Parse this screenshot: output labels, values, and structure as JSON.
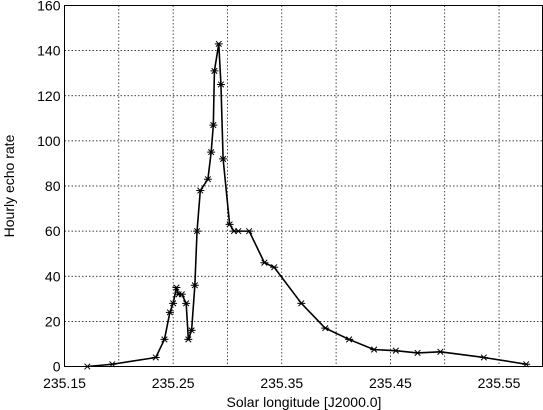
{
  "chart_data": {
    "type": "line",
    "xlabel": "Solar longitude [J2000.0]",
    "ylabel": "Hourly echo rate",
    "xlim": [
      235.15,
      235.59
    ],
    "ylim": [
      0,
      160
    ],
    "x_ticks": [
      "235.15",
      "235.25",
      "235.35",
      "235.45",
      "235.55"
    ],
    "x_gridlines": [
      235.15,
      235.2,
      235.25,
      235.3,
      235.35,
      235.4,
      235.45,
      235.5,
      235.55
    ],
    "y_ticks": [
      0,
      20,
      40,
      60,
      80,
      100,
      120,
      140,
      160
    ],
    "grid": true,
    "marker": "asterisk",
    "series": [
      {
        "x": [
          235.171,
          235.194,
          235.234,
          235.242,
          235.247,
          235.25,
          235.253,
          235.255,
          235.258,
          235.262,
          235.264,
          235.267,
          235.27,
          235.272,
          235.275,
          235.282,
          235.285,
          235.287,
          235.288,
          235.292,
          235.294,
          235.296,
          235.302,
          235.306,
          235.31,
          235.32,
          235.334,
          235.343,
          235.368,
          235.39,
          235.412,
          235.435,
          235.455,
          235.475,
          235.496,
          235.536,
          235.575
        ],
        "y": [
          0,
          1,
          4,
          12,
          24,
          28,
          35,
          32,
          32,
          28,
          12,
          16,
          36,
          60,
          78,
          83,
          95,
          107,
          131,
          143,
          125,
          92,
          63,
          60,
          60,
          60,
          46,
          44,
          28,
          17,
          12,
          7.5,
          7,
          6,
          6.5,
          4,
          1
        ]
      }
    ]
  }
}
